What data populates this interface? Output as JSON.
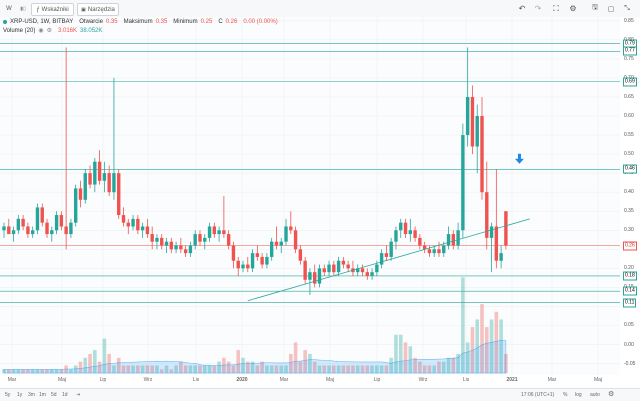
{
  "toolbar": {
    "interval": "W",
    "bar_style_label": "▮▯",
    "indicators_label": "Wskaźniki",
    "tools_label": "Narzędzia"
  },
  "legend": {
    "symbol": "XRP-USD, 1W, BITBAY",
    "open_label": "Otwarcie",
    "open_value": "0.35",
    "high_label": "Maksimum",
    "high_value": "0.35",
    "low_label": "Minimum",
    "low_value": "0.25",
    "close_label": "C",
    "close_value": "0.26",
    "change": "0.00 (0.00%)",
    "volume_label": "Volume (20)",
    "volume_value_1": "3.016K",
    "volume_value_2": "38.052K"
  },
  "price_axis": [
    "0.85",
    "0.80",
    "0.75",
    "0.70",
    "0.65",
    "0.60",
    "0.55",
    "0.50",
    "0.45",
    "0.40",
    "0.35",
    "0.30",
    "0.25",
    "0.20",
    "0.15",
    "0.10",
    "0.05",
    "0.00",
    "-0.05"
  ],
  "price_badges": [
    {
      "label": "0.79",
      "color": "green"
    },
    {
      "label": "0.77",
      "color": "green"
    },
    {
      "label": "0.69",
      "color": "green"
    },
    {
      "label": "0.46",
      "color": "green"
    },
    {
      "label": "0.26",
      "color": "red"
    },
    {
      "label": "0.18",
      "color": "green"
    },
    {
      "label": "0.14",
      "color": "green"
    },
    {
      "label": "0.11",
      "color": "green"
    }
  ],
  "time_axis": [
    "Mar",
    "Maj",
    "Lip",
    "Wrz",
    "Lis",
    "2020",
    "Mar",
    "Maj",
    "Lip",
    "Wrz",
    "Lis",
    "2021",
    "Mar",
    "Maj"
  ],
  "bottom": {
    "ranges": [
      "5y",
      "1y",
      "3m",
      "1m",
      "5d",
      "1d"
    ],
    "time": "17:06 (UTC+1)",
    "pct": "%",
    "log": "log",
    "auto": "auto"
  },
  "chart_data": {
    "type": "candlestick",
    "ylim": [
      -0.08,
      0.86
    ],
    "candles": [
      [
        0.3,
        0.32,
        0.28,
        0.31
      ],
      [
        0.31,
        0.33,
        0.29,
        0.29
      ],
      [
        0.29,
        0.31,
        0.27,
        0.3
      ],
      [
        0.3,
        0.34,
        0.29,
        0.33
      ],
      [
        0.33,
        0.34,
        0.3,
        0.31
      ],
      [
        0.31,
        0.32,
        0.28,
        0.29
      ],
      [
        0.29,
        0.31,
        0.28,
        0.3
      ],
      [
        0.3,
        0.37,
        0.29,
        0.36
      ],
      [
        0.36,
        0.37,
        0.31,
        0.32
      ],
      [
        0.32,
        0.33,
        0.28,
        0.29
      ],
      [
        0.29,
        0.31,
        0.27,
        0.3
      ],
      [
        0.3,
        0.35,
        0.29,
        0.34
      ],
      [
        0.34,
        0.35,
        0.3,
        0.31
      ],
      [
        0.31,
        0.78,
        0.25,
        0.29
      ],
      [
        0.29,
        0.33,
        0.28,
        0.32
      ],
      [
        0.32,
        0.42,
        0.31,
        0.41
      ],
      [
        0.41,
        0.43,
        0.36,
        0.38
      ],
      [
        0.38,
        0.46,
        0.37,
        0.45
      ],
      [
        0.45,
        0.47,
        0.41,
        0.42
      ],
      [
        0.42,
        0.49,
        0.4,
        0.48
      ],
      [
        0.48,
        0.51,
        0.42,
        0.43
      ],
      [
        0.43,
        0.48,
        0.4,
        0.45
      ],
      [
        0.45,
        0.47,
        0.39,
        0.4
      ],
      [
        0.4,
        0.7,
        0.38,
        0.45
      ],
      [
        0.45,
        0.46,
        0.33,
        0.34
      ],
      [
        0.34,
        0.36,
        0.31,
        0.32
      ],
      [
        0.32,
        0.33,
        0.29,
        0.31
      ],
      [
        0.31,
        0.34,
        0.3,
        0.33
      ],
      [
        0.33,
        0.34,
        0.29,
        0.3
      ],
      [
        0.3,
        0.32,
        0.28,
        0.31
      ],
      [
        0.31,
        0.33,
        0.28,
        0.29
      ],
      [
        0.29,
        0.31,
        0.25,
        0.27
      ],
      [
        0.27,
        0.29,
        0.25,
        0.28
      ],
      [
        0.28,
        0.29,
        0.25,
        0.26
      ],
      [
        0.26,
        0.28,
        0.24,
        0.27
      ],
      [
        0.27,
        0.28,
        0.24,
        0.25
      ],
      [
        0.25,
        0.27,
        0.24,
        0.26
      ],
      [
        0.26,
        0.28,
        0.24,
        0.25
      ],
      [
        0.25,
        0.26,
        0.23,
        0.24
      ],
      [
        0.24,
        0.27,
        0.23,
        0.26
      ],
      [
        0.26,
        0.3,
        0.25,
        0.29
      ],
      [
        0.29,
        0.3,
        0.26,
        0.27
      ],
      [
        0.27,
        0.29,
        0.25,
        0.28
      ],
      [
        0.28,
        0.32,
        0.27,
        0.31
      ],
      [
        0.31,
        0.32,
        0.28,
        0.29
      ],
      [
        0.29,
        0.31,
        0.27,
        0.3
      ],
      [
        0.3,
        0.39,
        0.28,
        0.29
      ],
      [
        0.29,
        0.3,
        0.25,
        0.26
      ],
      [
        0.26,
        0.27,
        0.2,
        0.22
      ],
      [
        0.22,
        0.23,
        0.18,
        0.2
      ],
      [
        0.2,
        0.22,
        0.19,
        0.21
      ],
      [
        0.21,
        0.23,
        0.19,
        0.2
      ],
      [
        0.2,
        0.25,
        0.19,
        0.24
      ],
      [
        0.24,
        0.26,
        0.22,
        0.23
      ],
      [
        0.23,
        0.24,
        0.2,
        0.21
      ],
      [
        0.21,
        0.24,
        0.2,
        0.23
      ],
      [
        0.23,
        0.28,
        0.22,
        0.27
      ],
      [
        0.27,
        0.31,
        0.25,
        0.26
      ],
      [
        0.26,
        0.28,
        0.24,
        0.27
      ],
      [
        0.27,
        0.33,
        0.26,
        0.31
      ],
      [
        0.31,
        0.35,
        0.29,
        0.3
      ],
      [
        0.3,
        0.31,
        0.24,
        0.25
      ],
      [
        0.25,
        0.26,
        0.21,
        0.22
      ],
      [
        0.22,
        0.23,
        0.16,
        0.17
      ],
      [
        0.17,
        0.2,
        0.13,
        0.19
      ],
      [
        0.19,
        0.21,
        0.15,
        0.16
      ],
      [
        0.16,
        0.21,
        0.15,
        0.2
      ],
      [
        0.2,
        0.21,
        0.18,
        0.19
      ],
      [
        0.19,
        0.22,
        0.18,
        0.21
      ],
      [
        0.21,
        0.22,
        0.18,
        0.19
      ],
      [
        0.19,
        0.23,
        0.18,
        0.22
      ],
      [
        0.22,
        0.23,
        0.2,
        0.21
      ],
      [
        0.21,
        0.22,
        0.19,
        0.2
      ],
      [
        0.2,
        0.22,
        0.18,
        0.19
      ],
      [
        0.19,
        0.21,
        0.18,
        0.2
      ],
      [
        0.2,
        0.21,
        0.18,
        0.19
      ],
      [
        0.19,
        0.2,
        0.17,
        0.18
      ],
      [
        0.18,
        0.2,
        0.17,
        0.19
      ],
      [
        0.19,
        0.22,
        0.18,
        0.21
      ],
      [
        0.21,
        0.25,
        0.2,
        0.24
      ],
      [
        0.24,
        0.26,
        0.22,
        0.23
      ],
      [
        0.23,
        0.28,
        0.22,
        0.27
      ],
      [
        0.27,
        0.31,
        0.25,
        0.3
      ],
      [
        0.3,
        0.33,
        0.28,
        0.32
      ],
      [
        0.32,
        0.33,
        0.28,
        0.29
      ],
      [
        0.29,
        0.33,
        0.27,
        0.3
      ],
      [
        0.3,
        0.31,
        0.27,
        0.28
      ],
      [
        0.28,
        0.29,
        0.25,
        0.26
      ],
      [
        0.26,
        0.27,
        0.24,
        0.25
      ],
      [
        0.25,
        0.26,
        0.23,
        0.24
      ],
      [
        0.24,
        0.26,
        0.23,
        0.25
      ],
      [
        0.25,
        0.27,
        0.23,
        0.24
      ],
      [
        0.24,
        0.27,
        0.23,
        0.26
      ],
      [
        0.26,
        0.31,
        0.25,
        0.29
      ],
      [
        0.29,
        0.3,
        0.25,
        0.26
      ],
      [
        0.26,
        0.32,
        0.25,
        0.3
      ],
      [
        0.3,
        0.58,
        0.28,
        0.55
      ],
      [
        0.55,
        0.78,
        0.52,
        0.65
      ],
      [
        0.65,
        0.68,
        0.5,
        0.52
      ],
      [
        0.52,
        0.63,
        0.45,
        0.6
      ],
      [
        0.6,
        0.65,
        0.38,
        0.4
      ],
      [
        0.4,
        0.48,
        0.25,
        0.28
      ],
      [
        0.28,
        0.32,
        0.19,
        0.31
      ],
      [
        0.31,
        0.46,
        0.2,
        0.22
      ],
      [
        0.22,
        0.26,
        0.2,
        0.24
      ],
      [
        0.35,
        0.35,
        0.25,
        0.26
      ]
    ],
    "volume_axis_max": 0.3,
    "volumes": [
      0.01,
      0.01,
      0.01,
      0.01,
      0.01,
      0.01,
      0.01,
      0.01,
      0.01,
      0.01,
      0.01,
      0.01,
      0.01,
      0.02,
      0.01,
      0.02,
      0.03,
      0.04,
      0.05,
      0.06,
      0.03,
      0.09,
      0.05,
      0.02,
      0.04,
      0.02,
      0.02,
      0.02,
      0.02,
      0.02,
      0.02,
      0.02,
      0.02,
      0.01,
      0.02,
      0.01,
      0.02,
      0.03,
      0.02,
      0.02,
      0.02,
      0.02,
      0.02,
      0.02,
      0.02,
      0.03,
      0.04,
      0.03,
      0.02,
      0.06,
      0.04,
      0.03,
      0.03,
      0.02,
      0.03,
      0.02,
      0.02,
      0.02,
      0.02,
      0.02,
      0.05,
      0.08,
      0.03,
      0.06,
      0.05,
      0.03,
      0.02,
      0.02,
      0.02,
      0.02,
      0.02,
      0.02,
      0.02,
      0.02,
      0.02,
      0.02,
      0.02,
      0.02,
      0.02,
      0.02,
      0.02,
      0.04,
      0.1,
      0.1,
      0.08,
      0.07,
      0.04,
      0.03,
      0.02,
      0.02,
      0.02,
      0.03,
      0.03,
      0.04,
      0.04,
      0.05,
      0.25,
      0.08,
      0.12,
      0.14,
      0.18,
      0.12,
      0.14,
      0.16,
      0.14,
      0.05
    ],
    "horizontal_levels": [
      {
        "value": 0.79,
        "color": "#26a69a"
      },
      {
        "value": 0.77,
        "color": "#26a69a"
      },
      {
        "value": 0.69,
        "color": "#26a69a"
      },
      {
        "value": 0.46,
        "color": "#26a69a"
      },
      {
        "value": 0.26,
        "color": "#ef5350"
      },
      {
        "value": 0.18,
        "color": "#26a69a"
      },
      {
        "value": 0.14,
        "color": "#26a69a"
      },
      {
        "value": 0.11,
        "color": "#26a69a"
      }
    ],
    "trendline": {
      "from_candle": 51,
      "from_price": 0.115,
      "to_candle": 110,
      "to_price": 0.33
    },
    "arrow": {
      "candle": 107,
      "price": 0.48
    },
    "colors": {
      "up": "#26a69a",
      "down": "#ef5350"
    }
  }
}
